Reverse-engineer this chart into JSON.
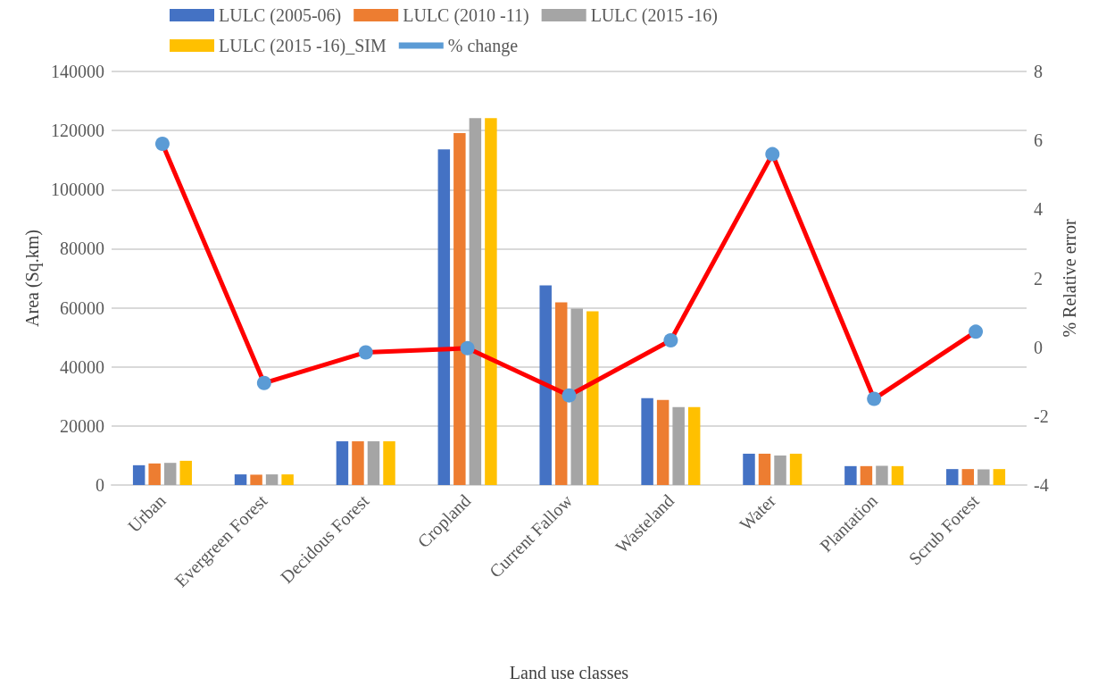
{
  "chart_data": {
    "type": "bar",
    "xlabel": "Land use classes",
    "ylabel": "Area (Sq.km)",
    "y2label": "% Relative error",
    "categories": [
      "Urban",
      "Evergreen Forest",
      "Decidous Forest",
      "Cropland",
      "Current Fallow",
      "Wasteland",
      "Water",
      "Plantation",
      "Scrub Forest"
    ],
    "series": [
      {
        "name": "LULC (2005-06)",
        "color": "#4472c4",
        "values": [
          6700,
          3600,
          14800,
          113600,
          67600,
          29400,
          10600,
          6400,
          5400
        ]
      },
      {
        "name": "LULC (2010 -11)",
        "color": "#ed7d31",
        "values": [
          7300,
          3500,
          14800,
          119100,
          61800,
          28800,
          10600,
          6400,
          5400
        ]
      },
      {
        "name": "LULC (2015 -16)",
        "color": "#a5a5a5",
        "values": [
          7500,
          3600,
          14800,
          124200,
          59700,
          26400,
          10000,
          6500,
          5300
        ]
      },
      {
        "name": "LULC (2015 -16)_SIM",
        "color": "#ffc000",
        "values": [
          8200,
          3600,
          14800,
          124200,
          58800,
          26400,
          10600,
          6400,
          5400
        ]
      },
      {
        "name": "% change",
        "type": "line",
        "axis": "y2",
        "color": "#ff0000",
        "marker": "circle",
        "values": [
          5.9,
          -1.04,
          -0.15,
          -0.03,
          -1.4,
          0.2,
          5.6,
          -1.5,
          0.45
        ]
      }
    ],
    "ylim": [
      0,
      140000
    ],
    "yticks": [
      0,
      20000,
      40000,
      60000,
      80000,
      100000,
      120000,
      140000
    ],
    "y2lim": [
      -4,
      8
    ],
    "y2ticks": [
      -4,
      -2,
      0,
      2,
      4,
      6,
      8
    ],
    "grid": "y",
    "legend": "top"
  }
}
